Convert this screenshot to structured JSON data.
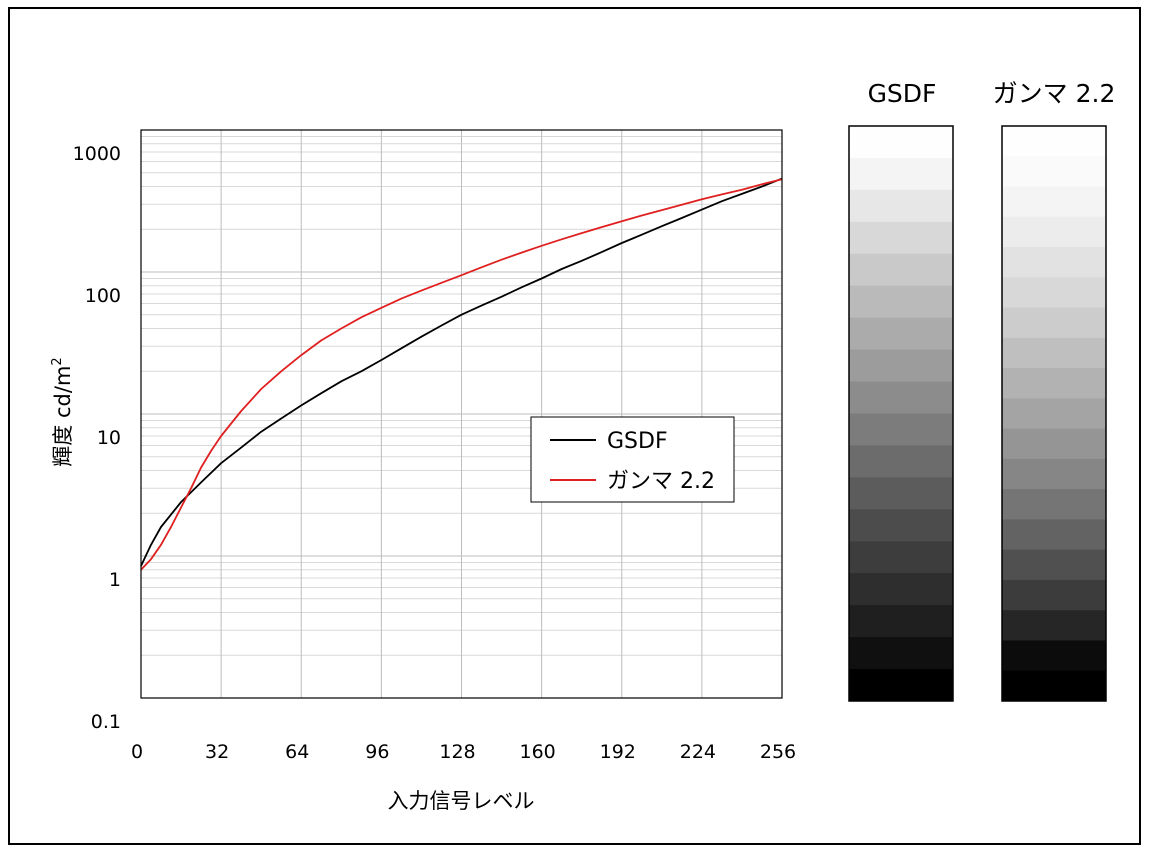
{
  "chart_data": {
    "type": "line",
    "xlabel": "入力信号レベル",
    "ylabel": "輝度 cd/m",
    "ylabel_sup": "2",
    "xlim": [
      0,
      256
    ],
    "ylim": [
      0.1,
      1000
    ],
    "yscale": "log",
    "grid": true,
    "legend_position": "center-right",
    "x_ticks": [
      "0",
      "32",
      "64",
      "96",
      "128",
      "160",
      "192",
      "224",
      "256"
    ],
    "y_ticks": [
      "0.1",
      "1",
      "10",
      "100",
      "1000"
    ],
    "series": [
      {
        "name": "GSDF",
        "color": "#000000",
        "points": [
          [
            0,
            0.85
          ],
          [
            4,
            1.2
          ],
          [
            8,
            1.6
          ],
          [
            16,
            2.4
          ],
          [
            24,
            3.3
          ],
          [
            32,
            4.5
          ],
          [
            40,
            5.8
          ],
          [
            48,
            7.5
          ],
          [
            56,
            9.3
          ],
          [
            64,
            11.5
          ],
          [
            72,
            14
          ],
          [
            80,
            17
          ],
          [
            88,
            20
          ],
          [
            96,
            24
          ],
          [
            104,
            29
          ],
          [
            112,
            35
          ],
          [
            120,
            42
          ],
          [
            128,
            50
          ],
          [
            136,
            58
          ],
          [
            144,
            67
          ],
          [
            152,
            78
          ],
          [
            160,
            90
          ],
          [
            168,
            105
          ],
          [
            176,
            120
          ],
          [
            184,
            138
          ],
          [
            192,
            160
          ],
          [
            200,
            183
          ],
          [
            208,
            210
          ],
          [
            216,
            240
          ],
          [
            224,
            275
          ],
          [
            232,
            315
          ],
          [
            240,
            355
          ],
          [
            248,
            400
          ],
          [
            256,
            455
          ]
        ]
      },
      {
        "name": "ガンマ 2.2",
        "color": "#e02020",
        "points": [
          [
            0,
            0.8
          ],
          [
            4,
            0.95
          ],
          [
            8,
            1.2
          ],
          [
            12,
            1.6
          ],
          [
            16,
            2.2
          ],
          [
            20,
            3
          ],
          [
            24,
            4.2
          ],
          [
            28,
            5.5
          ],
          [
            32,
            7
          ],
          [
            40,
            10.5
          ],
          [
            48,
            15
          ],
          [
            56,
            20
          ],
          [
            64,
            26
          ],
          [
            72,
            33
          ],
          [
            80,
            40
          ],
          [
            88,
            48
          ],
          [
            96,
            56
          ],
          [
            104,
            65
          ],
          [
            112,
            74
          ],
          [
            120,
            84
          ],
          [
            128,
            95
          ],
          [
            136,
            108
          ],
          [
            144,
            122
          ],
          [
            152,
            137
          ],
          [
            160,
            153
          ],
          [
            168,
            170
          ],
          [
            176,
            188
          ],
          [
            184,
            207
          ],
          [
            192,
            228
          ],
          [
            200,
            250
          ],
          [
            208,
            273
          ],
          [
            216,
            298
          ],
          [
            224,
            325
          ],
          [
            232,
            352
          ],
          [
            240,
            380
          ],
          [
            248,
            415
          ],
          [
            256,
            450
          ]
        ]
      }
    ],
    "grayscale_bars": [
      {
        "title": "GSDF",
        "steps": [
          "#fefefe",
          "#f4f4f4",
          "#e7e7e7",
          "#d8d8d8",
          "#c9c9c9",
          "#bababa",
          "#ababab",
          "#9c9c9c",
          "#8c8c8c",
          "#7c7c7c",
          "#6c6c6c",
          "#5c5c5c",
          "#4c4c4c",
          "#3d3d3d",
          "#2e2e2e",
          "#1f1f1f",
          "#101010",
          "#000000"
        ]
      },
      {
        "title": "ガンマ 2.2",
        "steps": [
          "#fefefe",
          "#fafafa",
          "#f4f4f4",
          "#ececec",
          "#e2e2e2",
          "#d8d8d8",
          "#cccccc",
          "#bfbfbf",
          "#b2b2b2",
          "#a4a4a4",
          "#959595",
          "#868686",
          "#757575",
          "#636363",
          "#505050",
          "#3c3c3c",
          "#262626",
          "#0c0c0c",
          "#000000"
        ]
      }
    ]
  }
}
